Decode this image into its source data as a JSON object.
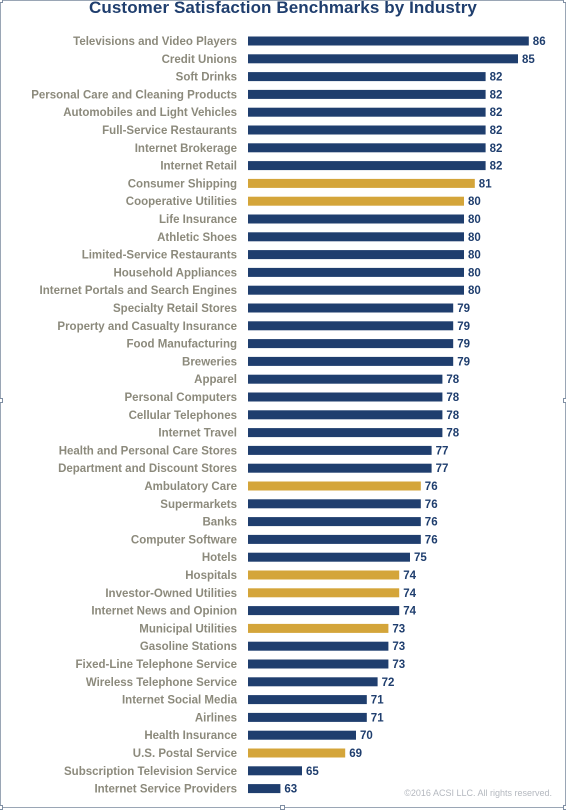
{
  "chart_data": {
    "type": "bar",
    "orientation": "horizontal",
    "title": "Customer Satisfaction Benchmarks by Industry",
    "colors": {
      "default": "#1f3e6e",
      "highlight": "#d4a53a",
      "label": "#8c8a7c",
      "value": "#1f3e6e"
    },
    "axis_min": 60,
    "grid": false,
    "categories": [
      "Televisions and Video Players",
      "Credit Unions",
      "Soft Drinks",
      "Personal Care and Cleaning Products",
      "Automobiles and Light Vehicles",
      "Full-Service Restaurants",
      "Internet Brokerage",
      "Internet Retail",
      "Consumer Shipping",
      "Cooperative Utilities",
      "Life Insurance",
      "Athletic Shoes",
      "Limited-Service Restaurants",
      "Household Appliances",
      "Internet Portals and Search Engines",
      "Specialty Retail Stores",
      "Property and Casualty Insurance",
      "Food Manufacturing",
      "Breweries",
      "Apparel",
      "Personal Computers",
      "Cellular Telephones",
      "Internet Travel",
      "Health and Personal Care Stores",
      "Department and Discount Stores",
      "Ambulatory Care",
      "Supermarkets",
      "Banks",
      "Computer Software",
      "Hotels",
      "Hospitals",
      "Investor-Owned Utilities",
      "Internet News and Opinion",
      "Municipal Utilities",
      "Gasoline Stations",
      "Fixed-Line Telephone Service",
      "Wireless Telephone Service",
      "Internet Social Media",
      "Airlines",
      "Health Insurance",
      "U.S. Postal Service",
      "Subscription Television Service",
      "Internet Service Providers"
    ],
    "values": [
      86,
      85,
      82,
      82,
      82,
      82,
      82,
      82,
      81,
      80,
      80,
      80,
      80,
      80,
      80,
      79,
      79,
      79,
      79,
      78,
      78,
      78,
      78,
      77,
      77,
      76,
      76,
      76,
      76,
      75,
      74,
      74,
      74,
      73,
      73,
      73,
      72,
      71,
      71,
      70,
      69,
      65,
      63
    ],
    "highlighted": [
      "Consumer Shipping",
      "Cooperative Utilities",
      "Ambulatory Care",
      "Hospitals",
      "Investor-Owned Utilities",
      "Municipal Utilities",
      "U.S. Postal Service"
    ]
  },
  "copyright": "©2016 ACSI LLC. All rights reserved."
}
